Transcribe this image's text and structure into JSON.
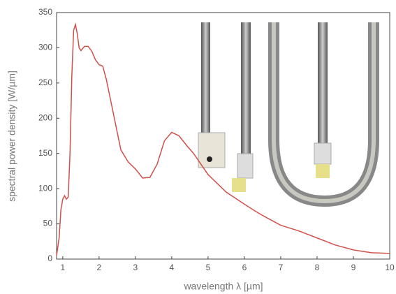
{
  "chart_data": {
    "type": "line",
    "x_label": "wavelength λ [µm]",
    "y_label": "spectral power density [W/µm]",
    "xlim": [
      0.83,
      10
    ],
    "xticks": [
      1,
      2,
      3,
      4,
      5,
      6,
      7,
      8,
      9,
      10
    ],
    "ylim": [
      0,
      350
    ],
    "yticks": [
      0,
      50,
      100,
      150,
      200,
      250,
      300,
      350
    ],
    "series": [
      {
        "color": "#d0504a",
        "x": [
          0.83,
          0.9,
          0.95,
          1.0,
          1.05,
          1.1,
          1.15,
          1.2,
          1.25,
          1.3,
          1.35,
          1.4,
          1.45,
          1.5,
          1.6,
          1.7,
          1.8,
          1.9,
          2.0,
          2.1,
          2.2,
          2.4,
          2.6,
          2.8,
          3.0,
          3.2,
          3.4,
          3.6,
          3.8,
          4.0,
          4.2,
          4.4,
          4.6,
          5.0,
          5.5,
          6.0,
          6.3,
          6.5,
          7.0,
          7.5,
          8.0,
          8.5,
          9.0,
          9.5,
          10
        ],
        "values": [
          5,
          30,
          70,
          85,
          90,
          85,
          88,
          150,
          260,
          325,
          333,
          320,
          300,
          296,
          302,
          302,
          295,
          283,
          276,
          274,
          255,
          205,
          155,
          138,
          128,
          115,
          116,
          135,
          168,
          180,
          175,
          162,
          150,
          120,
          95,
          78,
          68,
          62,
          48,
          40,
          30,
          20,
          13,
          9,
          8
        ]
      }
    ]
  }
}
